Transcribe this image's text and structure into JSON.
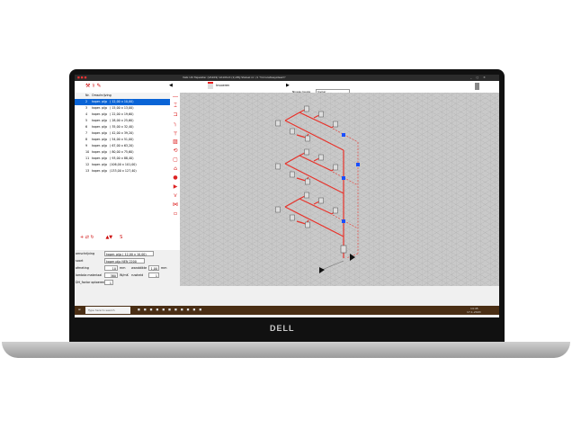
{
  "app": {
    "title": "Vabi UO Tapwater (VA109)  VA109-D (1).PRJ    Stelsel nr:   /1  \"Circulatiesysteem\"",
    "toolbar": {
      "invoeren": "Invoeren",
      "niveau_label": "Niveau keuze",
      "niveau_value": "Invoer"
    },
    "list": {
      "col_nr": "Nr.",
      "col_desc": "Omschrijving",
      "rows": [
        {
          "nr": "2",
          "name": "koper. pijp",
          "dims": "( 12,00 x 10,00)"
        },
        {
          "nr": "3",
          "name": "koper. pijp",
          "dims": "( 15,00 x 13,00)"
        },
        {
          "nr": "4",
          "name": "koper. pijp",
          "dims": "( 22,00 x 19,60)"
        },
        {
          "nr": "5",
          "name": "koper. pijp",
          "dims": "( 28,00 x 25,60)"
        },
        {
          "nr": "6",
          "name": "koper. pijp",
          "dims": "( 35,00 x 32,40)"
        },
        {
          "nr": "7",
          "name": "koper. pijp",
          "dims": "( 42,00 x 39,20)"
        },
        {
          "nr": "8",
          "name": "koper. pijp",
          "dims": "( 54,00 x 51,00)"
        },
        {
          "nr": "9",
          "name": "koper. pijp",
          "dims": "( 67,00 x 63,20)"
        },
        {
          "nr": "10",
          "name": "koper. pijp",
          "dims": "( 80,00 x 75,60)"
        },
        {
          "nr": "11",
          "name": "koper. pijp",
          "dims": "( 93,00 x 88,40)"
        },
        {
          "nr": "12",
          "name": "koper. pijp",
          "dims": "(106,00 x 101,00)"
        },
        {
          "nr": "13",
          "name": "koper. pijp",
          "dims": "(133,00 x 127,40)"
        }
      ]
    },
    "props": {
      "omschrijving_label": "omschrijving",
      "omschrijving_value": "koper. pijp       ( 12,00 x 10,00)",
      "soort_label": "soort",
      "soort_value": "koper pijp NEN 2200",
      "afmeting_label": "afmeting",
      "afmeting_value": "10",
      "afmeting_unit": "mm",
      "wanddikte_label": "wanddikte",
      "wanddikte_value": "1,00",
      "wanddikte_unit": "mm",
      "lambda_label": "lambda materiaal",
      "lambda_value": "380",
      "lambda_unit": "W/mK",
      "ruwheid_label": "ruwheid",
      "ruwheid_value": "1",
      "dh_label": "DH_factor optoeren",
      "dh_value": "1"
    },
    "taskbar": {
      "search": "Type here to search",
      "time": "14:45",
      "date": "17-1-2020"
    },
    "brand": "DELL",
    "colors": {
      "pipe": "#e8322a",
      "selection": "#0a64d6",
      "node": "#1a4fff"
    }
  }
}
